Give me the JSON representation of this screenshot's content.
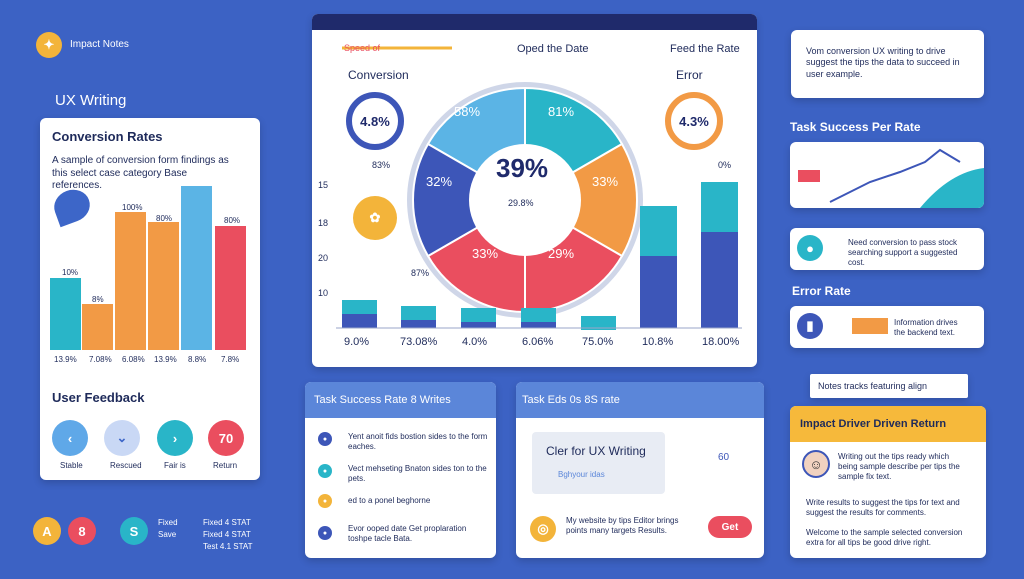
{
  "header": {
    "brand": "Impact Notes",
    "section": "UX Writing"
  },
  "conversion_card": {
    "title": "Conversion Rates",
    "description": "A sample of conversion form findings as this select case category Base references.",
    "bar_labels": [
      "10%",
      "8%",
      "100%",
      "80%",
      "80%"
    ],
    "axis_labels": [
      "13.9%",
      "7.08%",
      "6.08%",
      "13.9%",
      "8.8%",
      "7.8%"
    ]
  },
  "feedback": {
    "title": "User Feedback",
    "score": "70",
    "buttons": [
      "Stable",
      "Rescued",
      "Fair is",
      "Return"
    ]
  },
  "footer_left": {
    "badges": [
      "A",
      "8",
      "S"
    ],
    "stats": [
      "Fixed",
      "Fixed 4 STAT",
      "Save",
      "Fixed 4 STAT",
      "Test 4.1 STAT"
    ]
  },
  "dashboard": {
    "tabs": [
      "Speed of",
      "Oped the Date",
      "Feed the Rate"
    ],
    "conversion": {
      "label": "Conversion",
      "value": "4.8%"
    },
    "error": {
      "label": "Error",
      "value": "4.3%"
    },
    "markers": [
      "83%",
      "0%",
      "87%"
    ],
    "axis": [
      "15",
      "18",
      "20",
      "10"
    ],
    "pie_labels": [
      "58%",
      "81%",
      "33%",
      "29%",
      "33%",
      "32%"
    ],
    "center": "39%",
    "center_sub": "29.8%",
    "bar_labels": [
      "9.0%",
      "73.08%",
      "4.0%",
      "6.06%",
      "75.0%",
      "10.8%",
      "18.00%"
    ]
  },
  "right": {
    "note": "Vom conversion UX writing to drive suggest the tips the data to succeed in user example.",
    "task_success": "Task Success Per Rate",
    "task_item": "Need conversion to pass stock searching support a suggested cost.",
    "error_rate": "Error Rate",
    "error_item": "Information drives the backend text.",
    "notes_bar": "Notes tracks featuring align",
    "impact": {
      "title": "Impact Driver Driven Return",
      "items": [
        "Writing out the tips ready which being sample describe per tips the sample fix text.",
        "Write results to suggest the tips for text and suggest the results for comments.",
        "Welcome to the sample selected conversion extra for all tips be good drive right."
      ]
    }
  },
  "task_panel": {
    "title": "Task Success Rate  8 Writes",
    "items": [
      "Yent anoit fids bostion sides to the form eaches.",
      "Vect mehseting Bnaton sides ton to the pets.",
      "ed to a ponel beghorne",
      "Evor ooped date  Get proplaration toshpe tacle Bata."
    ]
  },
  "eds_panel": {
    "title": "Task Eds 0s 8S rate",
    "card_title": "Cler for UX Writing",
    "card_sub": "Bghyour idas",
    "badge": "60",
    "footer": "My website by tips Editor brings points many targets Results.",
    "button": "Get"
  }
}
